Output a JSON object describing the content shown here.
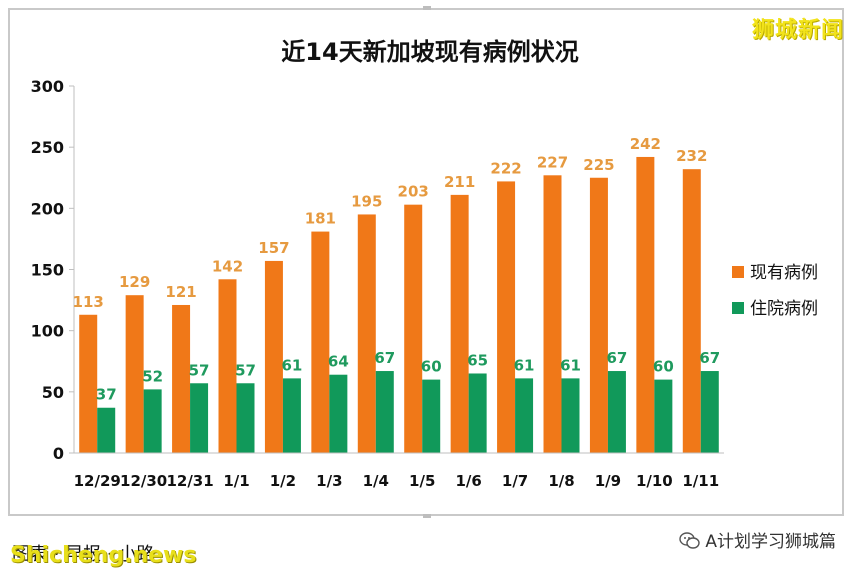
{
  "watermark": "狮城新闻",
  "footer": {
    "credit": "图表 · 早报 · 小路",
    "site": "Shicheng.news",
    "wechat": "A计划学习狮城篇"
  },
  "colors": {
    "existing": "#f07818",
    "hospital": "#11995a",
    "existing_label": "#e69a40",
    "hospital_label": "#1f9a5e"
  },
  "chart_data": {
    "type": "bar",
    "title": "近14天新加坡现有病例状况",
    "categories": [
      "12/29",
      "12/30",
      "12/31",
      "1/1",
      "1/2",
      "1/3",
      "1/4",
      "1/5",
      "1/6",
      "1/7",
      "1/8",
      "1/9",
      "1/10",
      "1/11"
    ],
    "series": [
      {
        "name": "现有病例",
        "values": [
          113,
          129,
          121,
          142,
          157,
          181,
          195,
          203,
          211,
          222,
          227,
          225,
          242,
          232
        ]
      },
      {
        "name": "住院病例",
        "values": [
          37,
          52,
          57,
          57,
          61,
          64,
          67,
          60,
          65,
          61,
          61,
          67,
          60,
          67
        ]
      }
    ],
    "ylim": [
      0,
      300
    ],
    "yticks": [
      0,
      50,
      100,
      150,
      200,
      250,
      300
    ],
    "legend": "right"
  }
}
